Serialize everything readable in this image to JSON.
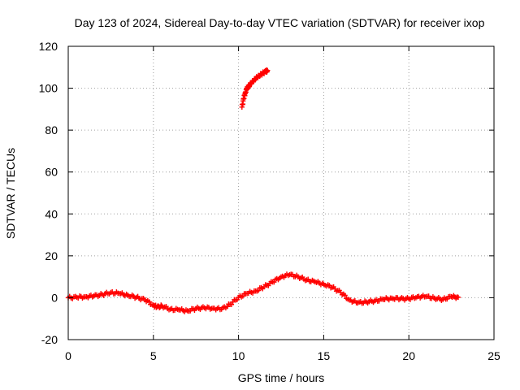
{
  "chart_data": {
    "type": "scatter",
    "title": "Day 123 of 2024, Sidereal Day-to-day VTEC variation (SDTVAR) for receiver ixop",
    "xlabel": "GPS time / hours",
    "ylabel": "SDTVAR / TECUs",
    "xlim": [
      0,
      25
    ],
    "ylim": [
      -20,
      120
    ],
    "xticks": [
      0,
      5,
      10,
      15,
      20,
      25
    ],
    "yticks": [
      -20,
      0,
      20,
      40,
      60,
      80,
      100,
      120
    ],
    "xtick_labels": [
      "0",
      "5",
      "10",
      "15",
      "20",
      "25"
    ],
    "ytick_labels": [
      "-20",
      "0",
      "20",
      "40",
      "60",
      "80",
      "100",
      "120"
    ],
    "grid": true,
    "marker": "+",
    "color": "#ff0000",
    "series": [
      {
        "name": "main",
        "x": [
          0.0,
          0.5,
          1.0,
          1.5,
          2.0,
          2.5,
          3.0,
          3.5,
          4.0,
          4.5,
          5.0,
          5.2,
          5.5,
          6.0,
          6.5,
          7.0,
          7.5,
          8.0,
          8.5,
          9.0,
          9.5,
          10.0,
          10.5,
          11.0,
          11.5,
          12.0,
          12.5,
          13.0,
          13.5,
          14.0,
          14.5,
          15.0,
          15.5,
          16.0,
          16.5,
          17.0,
          17.5,
          18.0,
          18.5,
          19.0,
          19.5,
          20.0,
          20.5,
          21.0,
          21.5,
          22.0,
          22.5,
          22.9
        ],
        "y": [
          0.0,
          0.2,
          0.5,
          0.8,
          1.5,
          2.5,
          2.0,
          1.2,
          0.2,
          -1.0,
          -3.5,
          -4.5,
          -4.0,
          -5.5,
          -5.8,
          -6.2,
          -5.2,
          -4.8,
          -5.0,
          -5.5,
          -3.2,
          0.2,
          2.0,
          3.2,
          5.2,
          7.5,
          10.0,
          11.0,
          10.0,
          8.5,
          7.5,
          6.5,
          5.0,
          2.5,
          -1.0,
          -2.5,
          -2.0,
          -1.5,
          -0.8,
          -0.2,
          -0.5,
          -0.5,
          0.5,
          0.5,
          -0.2,
          -0.8,
          0.5,
          0.2
        ]
      },
      {
        "name": "arc",
        "x": [
          10.2,
          10.3,
          10.4,
          10.5,
          10.6,
          10.8,
          11.0,
          11.2,
          11.4,
          11.6,
          11.7
        ],
        "y": [
          91,
          95,
          98,
          100,
          101,
          103,
          104.5,
          106,
          107,
          108,
          108.5
        ]
      }
    ]
  }
}
